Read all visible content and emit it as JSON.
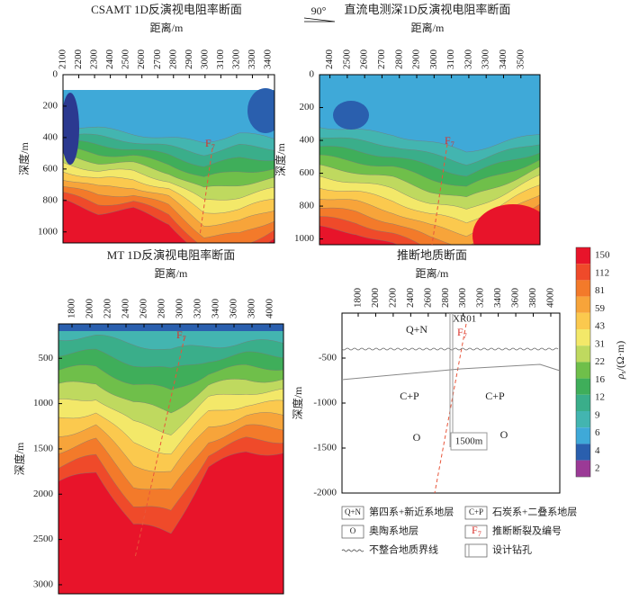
{
  "figure": {
    "annotation": "90°",
    "fault": {
      "name": "F",
      "sub": "7"
    },
    "panels": [
      {
        "title": "CSAMT 1D反演视电阻率断面",
        "xlabel": "距离/m",
        "ylabel": "深度/m",
        "xlim": [
          2100,
          3440
        ],
        "xticks": [
          2100,
          2200,
          2300,
          2400,
          2500,
          2600,
          2700,
          2800,
          2900,
          3000,
          3100,
          3200,
          3300,
          3400
        ],
        "ylim": [
          0,
          1070
        ],
        "yticks": [
          0,
          200,
          400,
          600,
          800,
          1000
        ]
      },
      {
        "title": "直流电测深1D反演视电阻率断面",
        "xlabel": "距离/m",
        "ylabel": "深度/m",
        "xlim": [
          2340,
          3610
        ],
        "xticks": [
          2400,
          2500,
          2600,
          2700,
          2800,
          2900,
          3000,
          3100,
          3200,
          3300,
          3400,
          3500
        ],
        "ylim": [
          0,
          1035
        ],
        "yticks": [
          0,
          200,
          400,
          600,
          800,
          1000
        ]
      },
      {
        "title": "MT 1D反演视电阻率断面",
        "xlabel": "距离/m",
        "ylabel": "深度/m",
        "xlim": [
          1650,
          4150
        ],
        "xticks": [
          1800,
          2000,
          2200,
          2400,
          2600,
          2800,
          3000,
          3200,
          3400,
          3600,
          3800,
          4000
        ],
        "ylim": [
          120,
          3100
        ],
        "yticks": [
          500,
          1000,
          1500,
          2000,
          2500,
          3000
        ]
      },
      {
        "title": "推断地质断面",
        "xlabel": "距离/m",
        "ylabel": "深度/m",
        "xlim": [
          1615,
          4103
        ],
        "xticks": [
          1800,
          2000,
          2200,
          2400,
          2600,
          2800,
          3000,
          3200,
          3400,
          3600,
          3800,
          4000
        ],
        "ylim": [
          0,
          -2000
        ],
        "yticks": [
          -500,
          -1000,
          -1500,
          -2000
        ]
      }
    ],
    "geology": {
      "units": [
        "Q+N",
        "C+P",
        "C+P",
        "O",
        "O"
      ],
      "borehole": {
        "name": "XR01",
        "depth": "1500m"
      }
    },
    "colorbar": {
      "symbol": "ρ",
      "sub": "s",
      "unit": "/(Ω·m)",
      "ticks": [
        150,
        112,
        81,
        59,
        43,
        31,
        22,
        16,
        12,
        9,
        6,
        4,
        2
      ]
    },
    "legend": [
      {
        "symbol": "Q+N",
        "text": "第四系+新近系地层"
      },
      {
        "symbol": "C+P",
        "text": "石炭系+二叠系地层"
      },
      {
        "symbol": "O",
        "text": "奥陶系地层"
      },
      {
        "text": "推断断裂及编号"
      },
      {
        "text": "不整合地质界线"
      },
      {
        "text": "设计钻孔"
      }
    ]
  }
}
